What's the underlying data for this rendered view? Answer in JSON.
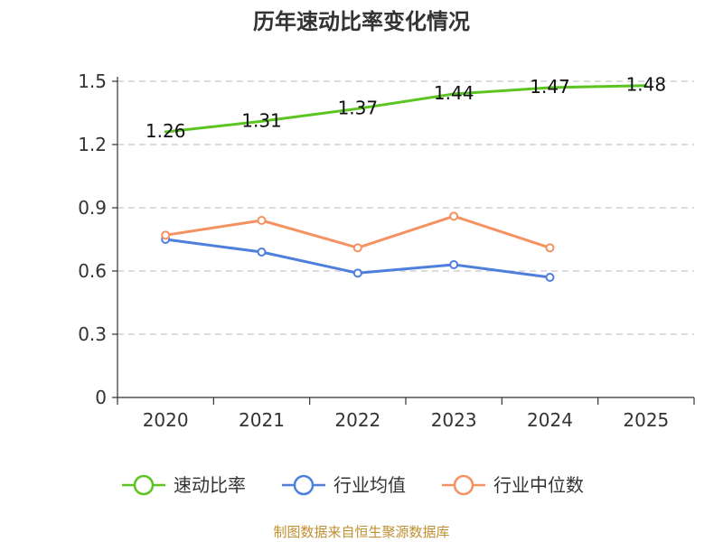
{
  "chart_data": {
    "type": "line",
    "title": "历年速动比率变化情况",
    "xlabel": "",
    "ylabel": "",
    "categories": [
      "2020",
      "2021",
      "2022",
      "2023",
      "2024",
      "2025"
    ],
    "ylim": [
      0,
      1.5
    ],
    "yticks": [
      "0",
      "0.3",
      "0.6",
      "0.9",
      "1.2",
      "1.5"
    ],
    "ytick_values": [
      0,
      0.3,
      0.6,
      0.9,
      1.2,
      1.5
    ],
    "grid": true,
    "legend_position": "bottom",
    "series": [
      {
        "name": "速动比率",
        "color": "#5cc421",
        "values": [
          1.26,
          1.31,
          1.37,
          1.44,
          1.47,
          1.48
        ],
        "labels": [
          "1.26",
          "1.31",
          "1.37",
          "1.44",
          "1.47",
          "1.48"
        ],
        "show_markers": false
      },
      {
        "name": "行业均值",
        "color": "#4e7fdc",
        "values": [
          0.75,
          0.69,
          0.59,
          0.63,
          0.57,
          null
        ],
        "show_markers": true
      },
      {
        "name": "行业中位数",
        "color": "#f59262",
        "values": [
          0.77,
          0.84,
          0.71,
          0.86,
          0.71,
          null
        ],
        "show_markers": true
      }
    ]
  },
  "source_text": "制图数据来自恒生聚源数据库"
}
